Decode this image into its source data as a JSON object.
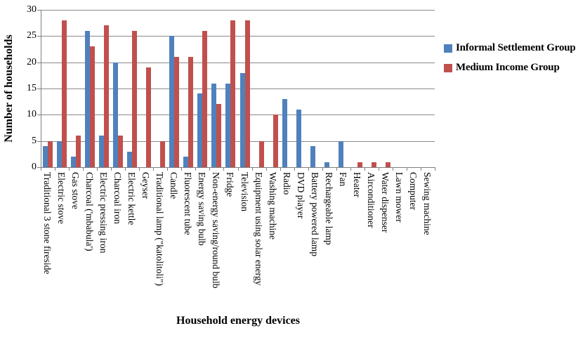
{
  "legend": {
    "items": [
      {
        "label": "Informal Settlement Group",
        "color": "#4F81BD"
      },
      {
        "label": "Medium Income Group",
        "color": "#C0504D"
      }
    ]
  },
  "chart_data": {
    "type": "bar",
    "title": "",
    "xlabel": "Household energy devices",
    "ylabel": "Number of households",
    "ylim": [
      0,
      30
    ],
    "yticks": [
      0,
      5,
      10,
      15,
      20,
      25,
      30
    ],
    "grid": true,
    "legend_position": "right",
    "categories": [
      "Traditional 3 stone fireside",
      "Electric stove",
      "Gas stove",
      "Charcoal ('mbabula')",
      "Electric pressing iron",
      "Charcoal iron",
      "Electric kettle",
      "Geyser",
      "Traditional lamp (\"katolitoli\")",
      "Candle",
      "Fluorescent tube",
      "Energy saving bulb",
      "Non-energy saving/round bulb",
      "Fridge",
      "Television",
      "Equipment using solar energy",
      "Washing machine",
      "Radio",
      "DVD player",
      "Battery powered lamp",
      "Rechargeable lamp",
      "Fan",
      "Heater",
      "Airconditioner",
      "Water dispenser",
      "Lawn mower",
      "Computer",
      "Sewing machine"
    ],
    "series": [
      {
        "name": "Informal Settlement Group",
        "color": "#4F81BD",
        "values": [
          4,
          5,
          2,
          26,
          6,
          20,
          3,
          0,
          0,
          25,
          2,
          14,
          16,
          16,
          18,
          0,
          0,
          13,
          11,
          4,
          1,
          5,
          0,
          0,
          0,
          0,
          0,
          0
        ]
      },
      {
        "name": "Medium Income Group",
        "color": "#C0504D",
        "values": [
          5,
          28,
          6,
          23,
          27,
          6,
          26,
          19,
          5,
          21,
          21,
          26,
          12,
          28,
          28,
          5,
          10,
          0,
          0,
          0,
          0,
          0,
          1,
          1,
          1,
          0,
          0,
          0
        ]
      }
    ],
    "colors": {
      "gridline": "#8A8A8A",
      "axis": "#7F7F7F",
      "text": "#000000",
      "background": "#FFFFFF"
    }
  }
}
